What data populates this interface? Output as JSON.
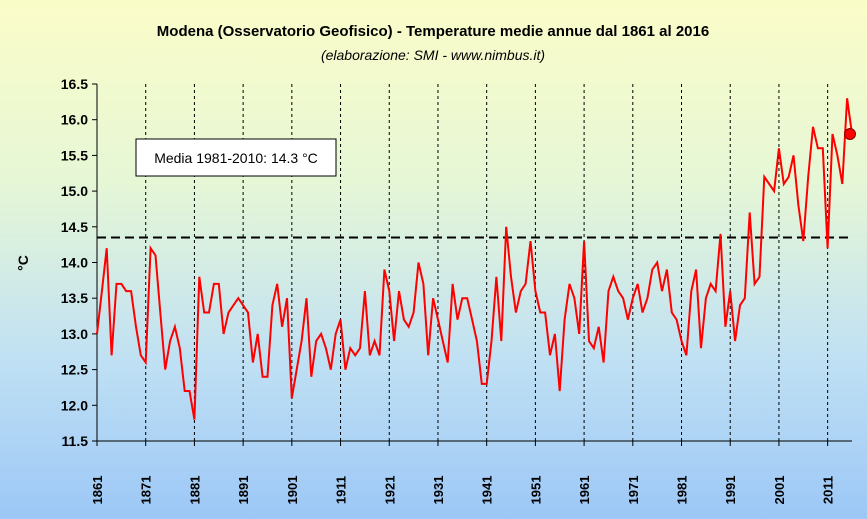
{
  "chart_data": {
    "type": "line",
    "title": "Modena (Osservatorio Geofisico) - Temperature medie annue dal 1861 al 2016",
    "subtitle": "(elaborazione: SMI - www.nimbus.it)",
    "ylabel": "°C",
    "xlabel": "",
    "xlim": [
      1861,
      2016
    ],
    "ylim": [
      11.5,
      16.5
    ],
    "yticks": [
      "16.5",
      "16.0",
      "15.5",
      "15.0",
      "14.5",
      "14.0",
      "13.5",
      "13.0",
      "12.5",
      "12.0",
      "11.5"
    ],
    "ytick_values": [
      16.5,
      16.0,
      15.5,
      15.0,
      14.5,
      14.0,
      13.5,
      13.0,
      12.5,
      12.0,
      11.5
    ],
    "xticks": [
      "1861",
      "1871",
      "1881",
      "1891",
      "1901",
      "1911",
      "1921",
      "1931",
      "1941",
      "1951",
      "1961",
      "1971",
      "1981",
      "1991",
      "2001",
      "2011"
    ],
    "xtick_values": [
      1861,
      1871,
      1881,
      1891,
      1901,
      1911,
      1921,
      1931,
      1941,
      1951,
      1961,
      1971,
      1981,
      1991,
      2001,
      2011
    ],
    "grid": "vertical-dashed",
    "reference_line": {
      "value": 14.35,
      "style": "dashed"
    },
    "annotation": "Media 1981-2010: 14.3 °C",
    "highlight_point": {
      "x": 2016,
      "y": 15.8
    },
    "series": [
      {
        "color": "#ff0000",
        "x": [
          1861,
          1862,
          1863,
          1864,
          1865,
          1866,
          1867,
          1868,
          1869,
          1870,
          1871,
          1872,
          1873,
          1874,
          1875,
          1876,
          1877,
          1878,
          1879,
          1880,
          1881,
          1882,
          1883,
          1884,
          1885,
          1886,
          1887,
          1888,
          1889,
          1890,
          1891,
          1892,
          1893,
          1894,
          1895,
          1896,
          1897,
          1898,
          1899,
          1900,
          1901,
          1902,
          1903,
          1904,
          1905,
          1906,
          1907,
          1908,
          1909,
          1910,
          1911,
          1912,
          1913,
          1914,
          1915,
          1916,
          1917,
          1918,
          1919,
          1920,
          1921,
          1922,
          1923,
          1924,
          1925,
          1926,
          1927,
          1928,
          1929,
          1930,
          1931,
          1932,
          1933,
          1934,
          1935,
          1936,
          1937,
          1938,
          1939,
          1940,
          1941,
          1942,
          1943,
          1944,
          1945,
          1946,
          1947,
          1948,
          1949,
          1950,
          1951,
          1952,
          1953,
          1954,
          1955,
          1956,
          1957,
          1958,
          1959,
          1960,
          1961,
          1962,
          1963,
          1964,
          1965,
          1966,
          1967,
          1968,
          1969,
          1970,
          1971,
          1972,
          1973,
          1974,
          1975,
          1976,
          1977,
          1978,
          1979,
          1980,
          1981,
          1982,
          1983,
          1984,
          1985,
          1986,
          1987,
          1988,
          1989,
          1990,
          1991,
          1992,
          1993,
          1994,
          1995,
          1996,
          1997,
          1998,
          1999,
          2000,
          2001,
          2002,
          2003,
          2004,
          2005,
          2006,
          2007,
          2008,
          2009,
          2010,
          2011,
          2012,
          2013,
          2014,
          2015,
          2016
        ],
        "y": [
          13.0,
          13.6,
          14.2,
          12.7,
          13.7,
          13.7,
          13.6,
          13.6,
          13.1,
          12.7,
          12.6,
          14.2,
          14.1,
          13.3,
          12.5,
          12.9,
          13.1,
          12.8,
          12.2,
          12.2,
          11.8,
          13.8,
          13.3,
          13.3,
          13.7,
          13.7,
          13.0,
          13.3,
          13.4,
          13.5,
          13.4,
          13.3,
          12.6,
          13.0,
          12.4,
          12.4,
          13.4,
          13.7,
          13.1,
          13.5,
          12.1,
          12.5,
          12.9,
          13.5,
          12.4,
          12.9,
          13.0,
          12.8,
          12.5,
          13.0,
          13.2,
          12.5,
          12.8,
          12.7,
          12.8,
          13.6,
          12.7,
          12.9,
          12.7,
          13.9,
          13.6,
          12.9,
          13.6,
          13.2,
          13.1,
          13.3,
          14.0,
          13.7,
          12.7,
          13.5,
          13.2,
          12.9,
          12.6,
          13.7,
          13.2,
          13.5,
          13.5,
          13.2,
          12.9,
          12.3,
          12.3,
          12.9,
          13.8,
          12.9,
          14.5,
          13.8,
          13.3,
          13.6,
          13.7,
          14.3,
          13.6,
          13.3,
          13.3,
          12.7,
          13.0,
          12.2,
          13.2,
          13.7,
          13.5,
          13.0,
          14.3,
          12.9,
          12.8,
          13.1,
          12.6,
          13.6,
          13.8,
          13.6,
          13.5,
          13.2,
          13.5,
          13.7,
          13.3,
          13.5,
          13.9,
          14.0,
          13.6,
          13.9,
          13.3,
          13.2,
          12.9,
          12.7,
          13.6,
          13.9,
          12.8,
          13.5,
          13.7,
          13.6,
          14.4,
          13.1,
          13.6,
          12.9,
          13.4,
          13.5,
          14.7,
          13.7,
          13.8,
          15.2,
          15.1,
          15.0,
          15.6,
          15.1,
          15.2,
          15.5,
          14.8,
          14.3,
          15.2,
          15.9,
          15.6,
          15.6,
          14.2,
          15.8,
          15.5,
          15.1,
          16.3,
          15.8
        ]
      }
    ]
  }
}
